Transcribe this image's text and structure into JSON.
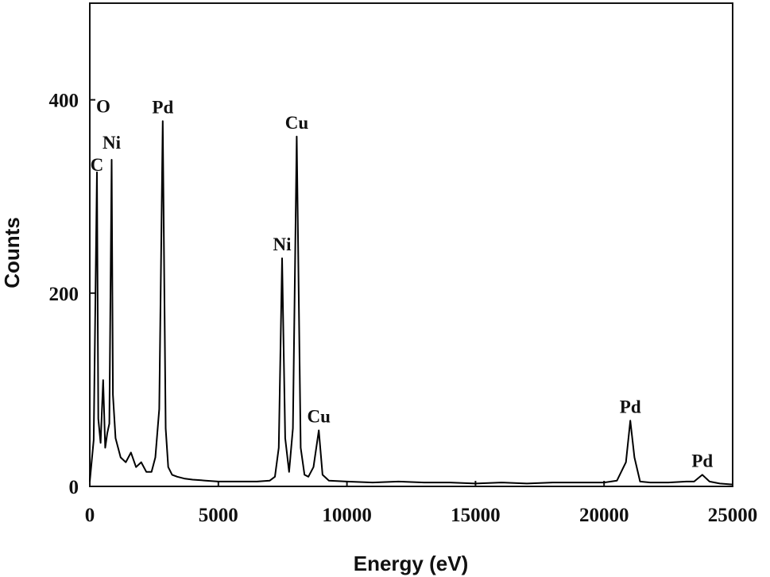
{
  "chart_data": {
    "type": "line",
    "title": "",
    "xlabel": "Energy (eV)",
    "ylabel": "Counts",
    "xlim": [
      0,
      25000
    ],
    "ylim": [
      0,
      500
    ],
    "x_ticks": [
      0,
      5000,
      10000,
      15000,
      20000,
      25000
    ],
    "y_ticks": [
      0,
      200,
      400
    ],
    "grid": false,
    "legend": "none",
    "line_color": "#000000",
    "series": [
      {
        "x": [
          0,
          150,
          277,
          330,
          420,
          520,
          600,
          680,
          760,
          851,
          900,
          1000,
          1200,
          1400,
          1600,
          1800,
          2000,
          2200,
          2400,
          2550,
          2700,
          2838,
          2950,
          3050,
          3200,
          3400,
          3700,
          4000,
          4500,
          5000,
          5500,
          6000,
          6500,
          7000,
          7200,
          7350,
          7478,
          7600,
          7750,
          7900,
          8048,
          8200,
          8350,
          8500,
          8700,
          8905,
          9050,
          9300,
          10000,
          11000,
          12000,
          13000,
          14000,
          15000,
          16000,
          17000,
          18000,
          19000,
          20000,
          20500,
          20850,
          21020,
          21180,
          21400,
          21800,
          22500,
          23200,
          23500,
          23818,
          24100,
          24500,
          25000
        ],
        "y": [
          5,
          48,
          325,
          70,
          45,
          110,
          40,
          55,
          65,
          338,
          95,
          50,
          30,
          25,
          35,
          20,
          25,
          15,
          15,
          30,
          80,
          378,
          60,
          20,
          12,
          10,
          8,
          7,
          6,
          5,
          5,
          5,
          5,
          6,
          10,
          40,
          236,
          50,
          15,
          60,
          362,
          40,
          12,
          10,
          20,
          58,
          12,
          6,
          5,
          4,
          5,
          4,
          4,
          3,
          4,
          3,
          4,
          4,
          4,
          6,
          25,
          68,
          30,
          5,
          4,
          4,
          5,
          5,
          12,
          5,
          3,
          2
        ]
      }
    ],
    "annotations": [
      {
        "text": "C",
        "x": 277
      },
      {
        "text": "O",
        "x": 525
      },
      {
        "text": "Ni",
        "x": 851
      },
      {
        "text": "Pd",
        "x": 2838
      },
      {
        "text": "Ni",
        "x": 7478
      },
      {
        "text": "Cu",
        "x": 8048
      },
      {
        "text": "Cu",
        "x": 8905
      },
      {
        "text": "Pd",
        "x": 21020
      },
      {
        "text": "Pd",
        "x": 23818
      }
    ]
  }
}
